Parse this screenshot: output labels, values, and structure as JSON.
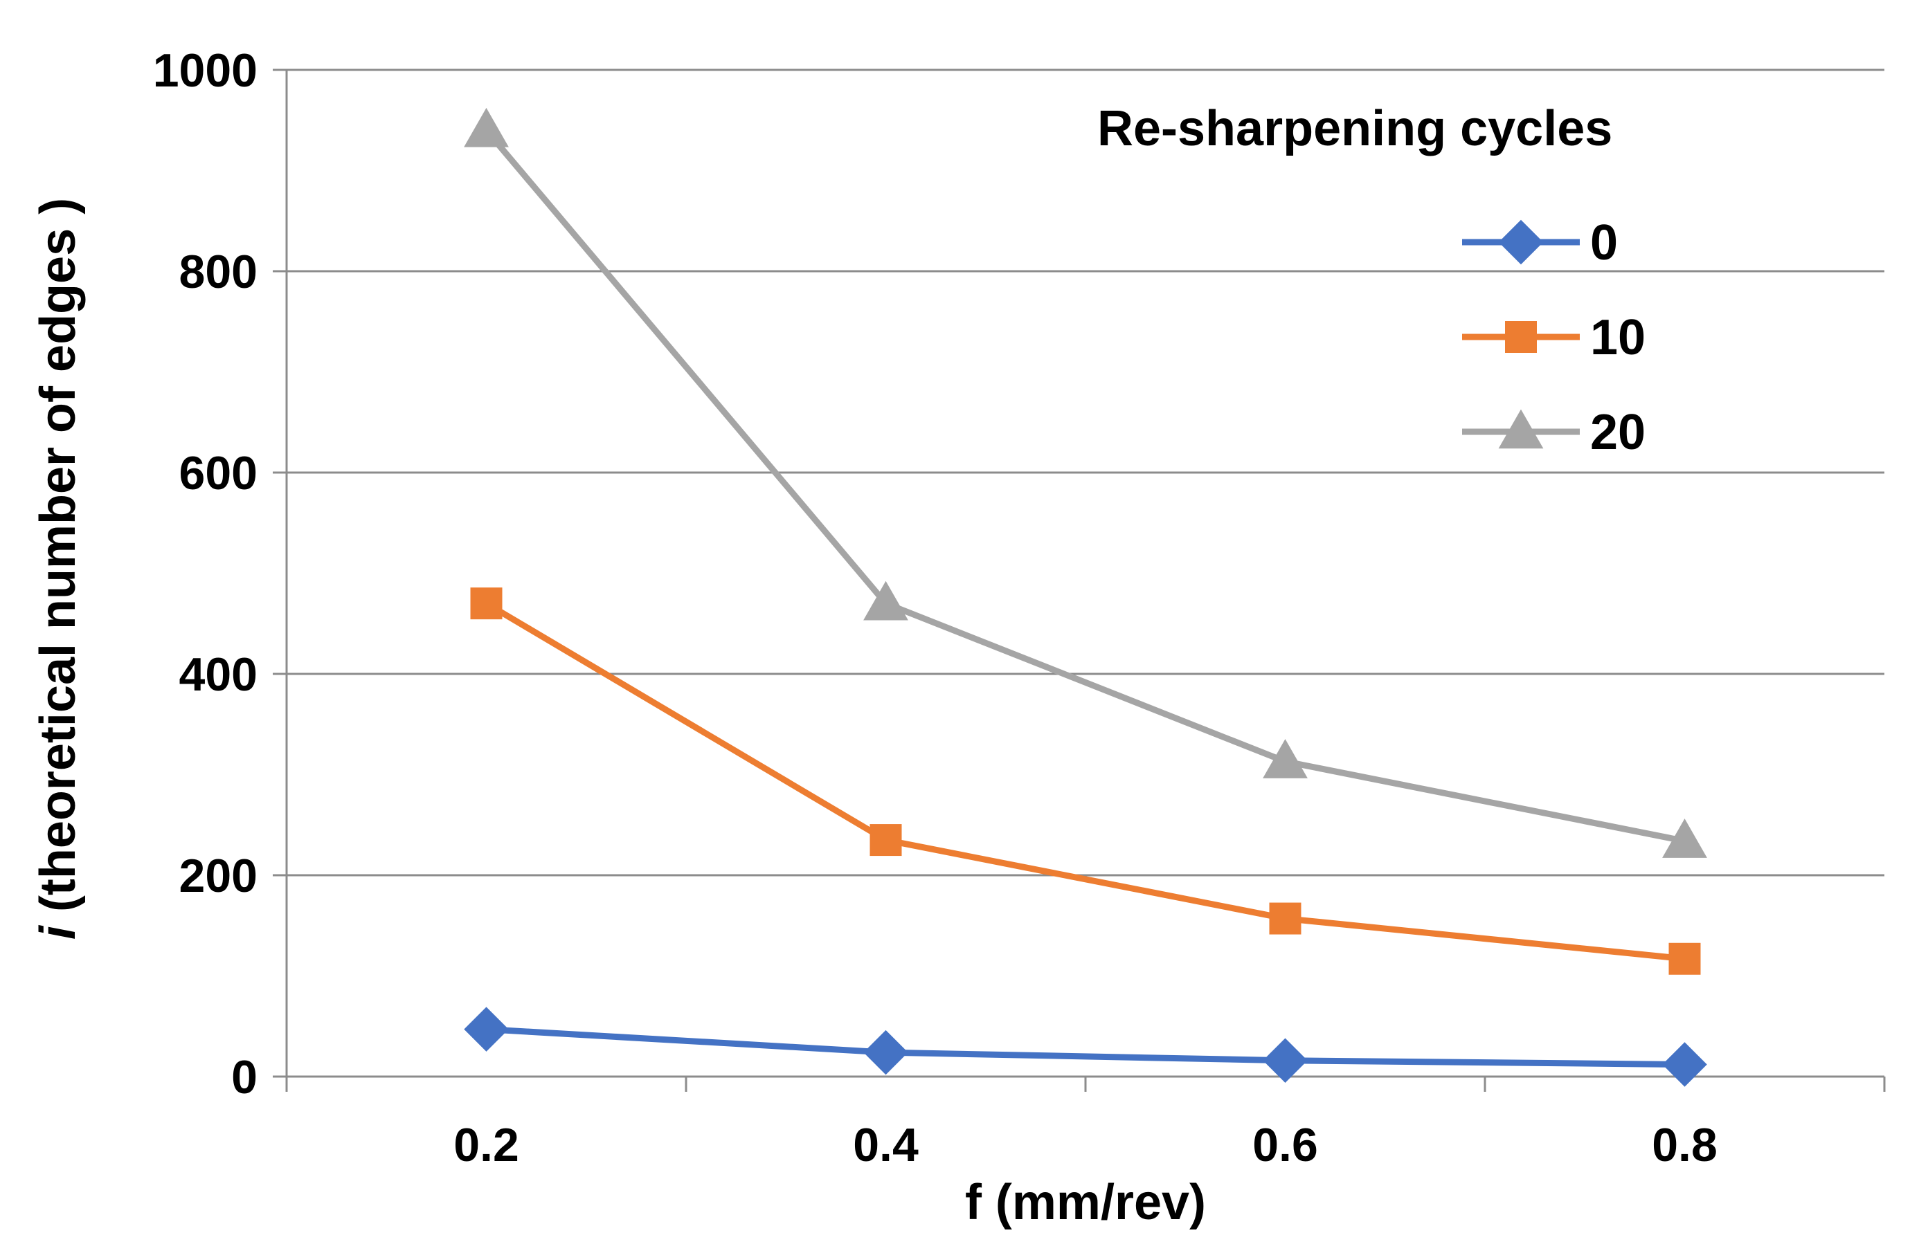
{
  "chart_data": {
    "type": "line",
    "x": [
      0.2,
      0.4,
      0.6,
      0.8
    ],
    "xlim": [
      0.1,
      0.9
    ],
    "ylim": [
      0,
      1000
    ],
    "xticks": [
      0.2,
      0.4,
      0.6,
      0.8
    ],
    "yticks": [
      0,
      200,
      400,
      600,
      800,
      1000
    ],
    "xlabel": "f (mm/rev)",
    "ylabel_italic": "i",
    "ylabel": " (theoretical number of edges )",
    "grid": "horizontal",
    "legend": {
      "title": "Re-sharpening cycles",
      "placement": "top-right"
    },
    "series": [
      {
        "name": "0",
        "values": [
          47,
          24,
          16,
          12
        ],
        "color": "#4472C4",
        "marker": "diamond"
      },
      {
        "name": "10",
        "values": [
          470,
          235,
          157,
          117
        ],
        "color": "#ED7D31",
        "marker": "square"
      },
      {
        "name": "20",
        "values": [
          940,
          470,
          313,
          234
        ],
        "color": "#A5A5A5",
        "marker": "triangle"
      }
    ]
  }
}
